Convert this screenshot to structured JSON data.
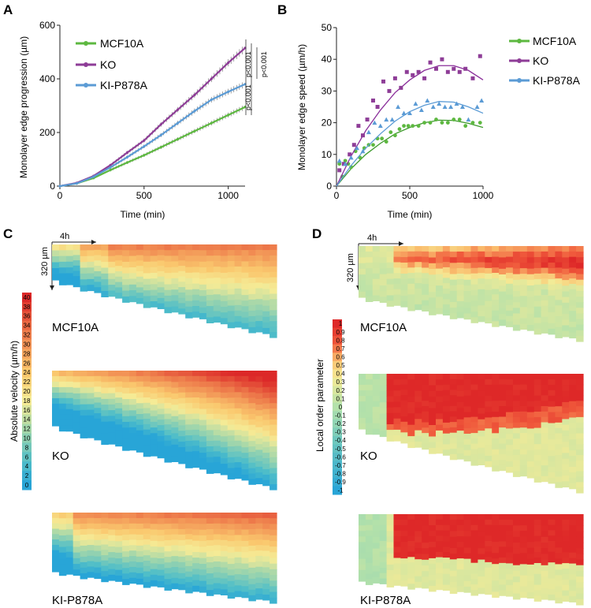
{
  "panels": {
    "a": "A",
    "b": "B",
    "c": "C",
    "d": "D"
  },
  "colors": {
    "mcf10a": "#5db840",
    "ko": "#8e3d97",
    "ki": "#5b9bd5",
    "mcf10a_dark": "#3e9a2c",
    "ko_dark": "#8a2e9a"
  },
  "groups": {
    "g1": "MCF10A",
    "g2": "KO",
    "g3": "KI-P878A"
  },
  "chart_data": [
    {
      "id": "A",
      "type": "line",
      "xlabel": "Time (min)",
      "ylabel": "Monolayer edge progression (µm)",
      "xlim": [
        0,
        1100
      ],
      "ylim": [
        0,
        600
      ],
      "xticks": [
        0,
        500,
        1000
      ],
      "yticks": [
        0,
        200,
        400,
        600
      ],
      "x": [
        0,
        100,
        200,
        300,
        400,
        500,
        600,
        700,
        800,
        900,
        1000,
        1100
      ],
      "series": [
        {
          "name": "MCF10A",
          "values": [
            0,
            10,
            30,
            60,
            88,
            115,
            145,
            175,
            205,
            235,
            265,
            295
          ]
        },
        {
          "name": "KO",
          "values": [
            0,
            12,
            38,
            78,
            125,
            170,
            230,
            285,
            340,
            400,
            460,
            515
          ]
        },
        {
          "name": "KI-P878A",
          "values": [
            0,
            10,
            35,
            70,
            108,
            148,
            190,
            235,
            280,
            322,
            352,
            380
          ]
        }
      ],
      "annotations": [
        "p<0.001",
        "p<0.001",
        "p<0.001"
      ]
    },
    {
      "id": "B",
      "type": "scatter",
      "xlabel": "Time (min)",
      "ylabel": "Monolayer edge speed (µm/h)",
      "xlim": [
        0,
        1000
      ],
      "ylim": [
        0,
        50
      ],
      "xticks": [
        0,
        500,
        1000
      ],
      "yticks": [
        0,
        10,
        20,
        30,
        40,
        50
      ],
      "series": [
        {
          "name": "MCF10A",
          "fit": [
            [
              0,
              0
            ],
            [
              100,
              5.5
            ],
            [
              200,
              10
            ],
            [
              300,
              13.5
            ],
            [
              400,
              16.5
            ],
            [
              500,
              18.5
            ],
            [
              600,
              20
            ],
            [
              700,
              20.8
            ],
            [
              800,
              20.7
            ],
            [
              900,
              19.8
            ],
            [
              1000,
              18.5
            ]
          ],
          "points": [
            [
              20,
              7
            ],
            [
              40,
              3
            ],
            [
              60,
              8
            ],
            [
              80,
              7
            ],
            [
              100,
              6
            ],
            [
              130,
              11
            ],
            [
              160,
              9
            ],
            [
              190,
              12
            ],
            [
              220,
              13
            ],
            [
              250,
              13
            ],
            [
              280,
              15
            ],
            [
              310,
              15
            ],
            [
              340,
              14
            ],
            [
              370,
              17
            ],
            [
              400,
              16
            ],
            [
              430,
              18
            ],
            [
              460,
              19
            ],
            [
              490,
              19
            ],
            [
              520,
              19
            ],
            [
              560,
              19
            ],
            [
              600,
              20
            ],
            [
              640,
              20
            ],
            [
              680,
              21
            ],
            [
              720,
              20
            ],
            [
              760,
              20
            ],
            [
              800,
              21
            ],
            [
              840,
              21
            ],
            [
              880,
              19
            ],
            [
              930,
              20
            ],
            [
              980,
              20
            ]
          ]
        },
        {
          "name": "KO",
          "fit": [
            [
              0,
              0
            ],
            [
              100,
              9.5
            ],
            [
              200,
              17.5
            ],
            [
              300,
              24
            ],
            [
              400,
              29.5
            ],
            [
              500,
              33.5
            ],
            [
              600,
              36.5
            ],
            [
              700,
              38
            ],
            [
              800,
              38
            ],
            [
              900,
              36.5
            ],
            [
              1000,
              33.5
            ]
          ],
          "points": [
            [
              20,
              5
            ],
            [
              50,
              7
            ],
            [
              90,
              10
            ],
            [
              120,
              13
            ],
            [
              150,
              19
            ],
            [
              180,
              16
            ],
            [
              210,
              21
            ],
            [
              250,
              27
            ],
            [
              280,
              25
            ],
            [
              320,
              33
            ],
            [
              360,
              30
            ],
            [
              400,
              34
            ],
            [
              440,
              31
            ],
            [
              480,
              36
            ],
            [
              520,
              35
            ],
            [
              560,
              36
            ],
            [
              600,
              34
            ],
            [
              640,
              39
            ],
            [
              680,
              37
            ],
            [
              720,
              40
            ],
            [
              760,
              36
            ],
            [
              800,
              37
            ],
            [
              840,
              36
            ],
            [
              880,
              37
            ],
            [
              930,
              34
            ],
            [
              980,
              41
            ]
          ]
        },
        {
          "name": "KI-P878A",
          "fit": [
            [
              0,
              0
            ],
            [
              100,
              6.5
            ],
            [
              200,
              12
            ],
            [
              300,
              16.5
            ],
            [
              400,
              20.5
            ],
            [
              500,
              23.5
            ],
            [
              600,
              25.5
            ],
            [
              700,
              26.7
            ],
            [
              800,
              26.5
            ],
            [
              900,
              25
            ],
            [
              1000,
              23
            ]
          ],
          "points": [
            [
              20,
              8
            ],
            [
              60,
              7
            ],
            [
              100,
              9
            ],
            [
              140,
              12
            ],
            [
              180,
              11
            ],
            [
              220,
              17
            ],
            [
              260,
              20
            ],
            [
              300,
              19
            ],
            [
              340,
              21
            ],
            [
              380,
              21
            ],
            [
              420,
              25
            ],
            [
              460,
              23
            ],
            [
              500,
              23
            ],
            [
              540,
              26
            ],
            [
              580,
              24
            ],
            [
              620,
              27
            ],
            [
              660,
              25
            ],
            [
              700,
              26
            ],
            [
              740,
              25
            ],
            [
              780,
              25
            ],
            [
              820,
              26
            ],
            [
              860,
              25
            ],
            [
              900,
              21
            ],
            [
              960,
              25
            ],
            [
              990,
              27
            ]
          ]
        }
      ]
    },
    {
      "id": "C",
      "type": "heatmap",
      "title": "Absolute velocity (µm/h)",
      "colorbar": [
        "40",
        "38",
        "36",
        "34",
        "32",
        "30",
        "28",
        "26",
        "24",
        "22",
        "20",
        "18",
        "16",
        "14",
        "12",
        "10",
        "8",
        "6",
        "4",
        "2",
        "0"
      ],
      "time_scale": "4h",
      "space_scale": "320 µm",
      "rows": [
        "MCF10A",
        "KO",
        "KI-P878A"
      ]
    },
    {
      "id": "D",
      "type": "heatmap",
      "title": "Local order parameter",
      "colorbar": [
        "1",
        "0.9",
        "0.8",
        "0.7",
        "0.6",
        "0.5",
        "0.4",
        "0.3",
        "0.2",
        "0.1",
        "0",
        "-0.1",
        "-0.2",
        "-0.3",
        "-0.4",
        "-0.5",
        "-0.6",
        "-0.7",
        "-0.8",
        "-0.9",
        "-1"
      ],
      "time_scale": "4h",
      "space_scale": "320 µm",
      "rows": [
        "MCF10A",
        "KO",
        "KI-P878A"
      ]
    }
  ]
}
